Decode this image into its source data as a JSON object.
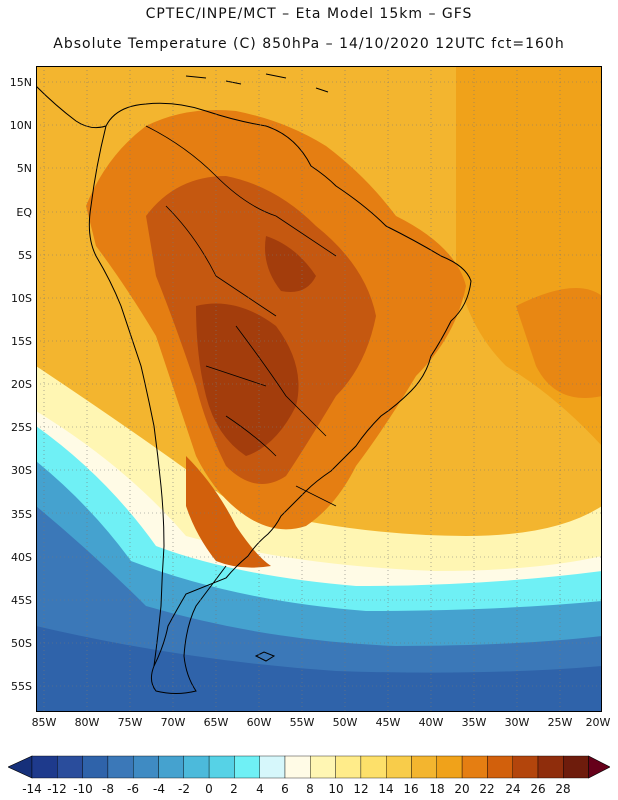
{
  "header": {
    "line1": "CPTEC/INPE/MCT –  Eta Model 15km – GFS",
    "line2": "Absolute Temperature (C) 850hPa – 14/10/2020 12UTC fct=160h"
  },
  "map": {
    "lat_ticks": [
      "15N",
      "10N",
      "5N",
      "EQ",
      "5S",
      "10S",
      "15S",
      "20S",
      "25S",
      "30S",
      "35S",
      "40S",
      "45S",
      "50S",
      "55S"
    ],
    "lon_ticks": [
      "85W",
      "80W",
      "75W",
      "70W",
      "65W",
      "60W",
      "55W",
      "50W",
      "45W",
      "40W",
      "35W",
      "30W",
      "25W",
      "20W"
    ],
    "zones": [
      "ocean-north",
      "ocean-east",
      "continent-warm",
      "continent-core",
      "argentina-warm",
      "southern-cool",
      "southern-cold",
      "southern-ocean"
    ],
    "grid_style": "dotted"
  },
  "colorbar": {
    "labels": [
      "-14",
      "-12",
      "-10",
      "-8",
      "-6",
      "-4",
      "-2",
      "0",
      "2",
      "4",
      "6",
      "8",
      "10",
      "12",
      "14",
      "16",
      "18",
      "20",
      "22",
      "24",
      "26",
      "28"
    ],
    "colors": [
      "#1e3a8c",
      "#2a4d9c",
      "#2f63aa",
      "#3b78b8",
      "#3f8bc3",
      "#45a2cf",
      "#4cbadb",
      "#56d2e6",
      "#6ff0f5",
      "#d6f7fb",
      "#fffbe6",
      "#fff6b3",
      "#ffec8a",
      "#fde06a",
      "#f8cc4a",
      "#f3b52f",
      "#f0a21a",
      "#e57e12",
      "#d2600c",
      "#b3450c",
      "#8f2d0c",
      "#6e1c0c"
    ],
    "low_arrow_color": "#16307a",
    "high_arrow_color": "#66001a"
  },
  "palette": {
    "ocean_north": "#f3b52f",
    "ocean_east": "#f0a21a",
    "continent_warm": "#e57e12",
    "continent_core": "#c55810",
    "continent_hot": "#a33d0c",
    "argentina": "#d2600c",
    "southern_cool": "#fff6b3",
    "southern_cold": "#6ff0f5",
    "southern_colder": "#45a2cf",
    "southern_ocean": "#2f63aa",
    "coast": "#000000"
  }
}
